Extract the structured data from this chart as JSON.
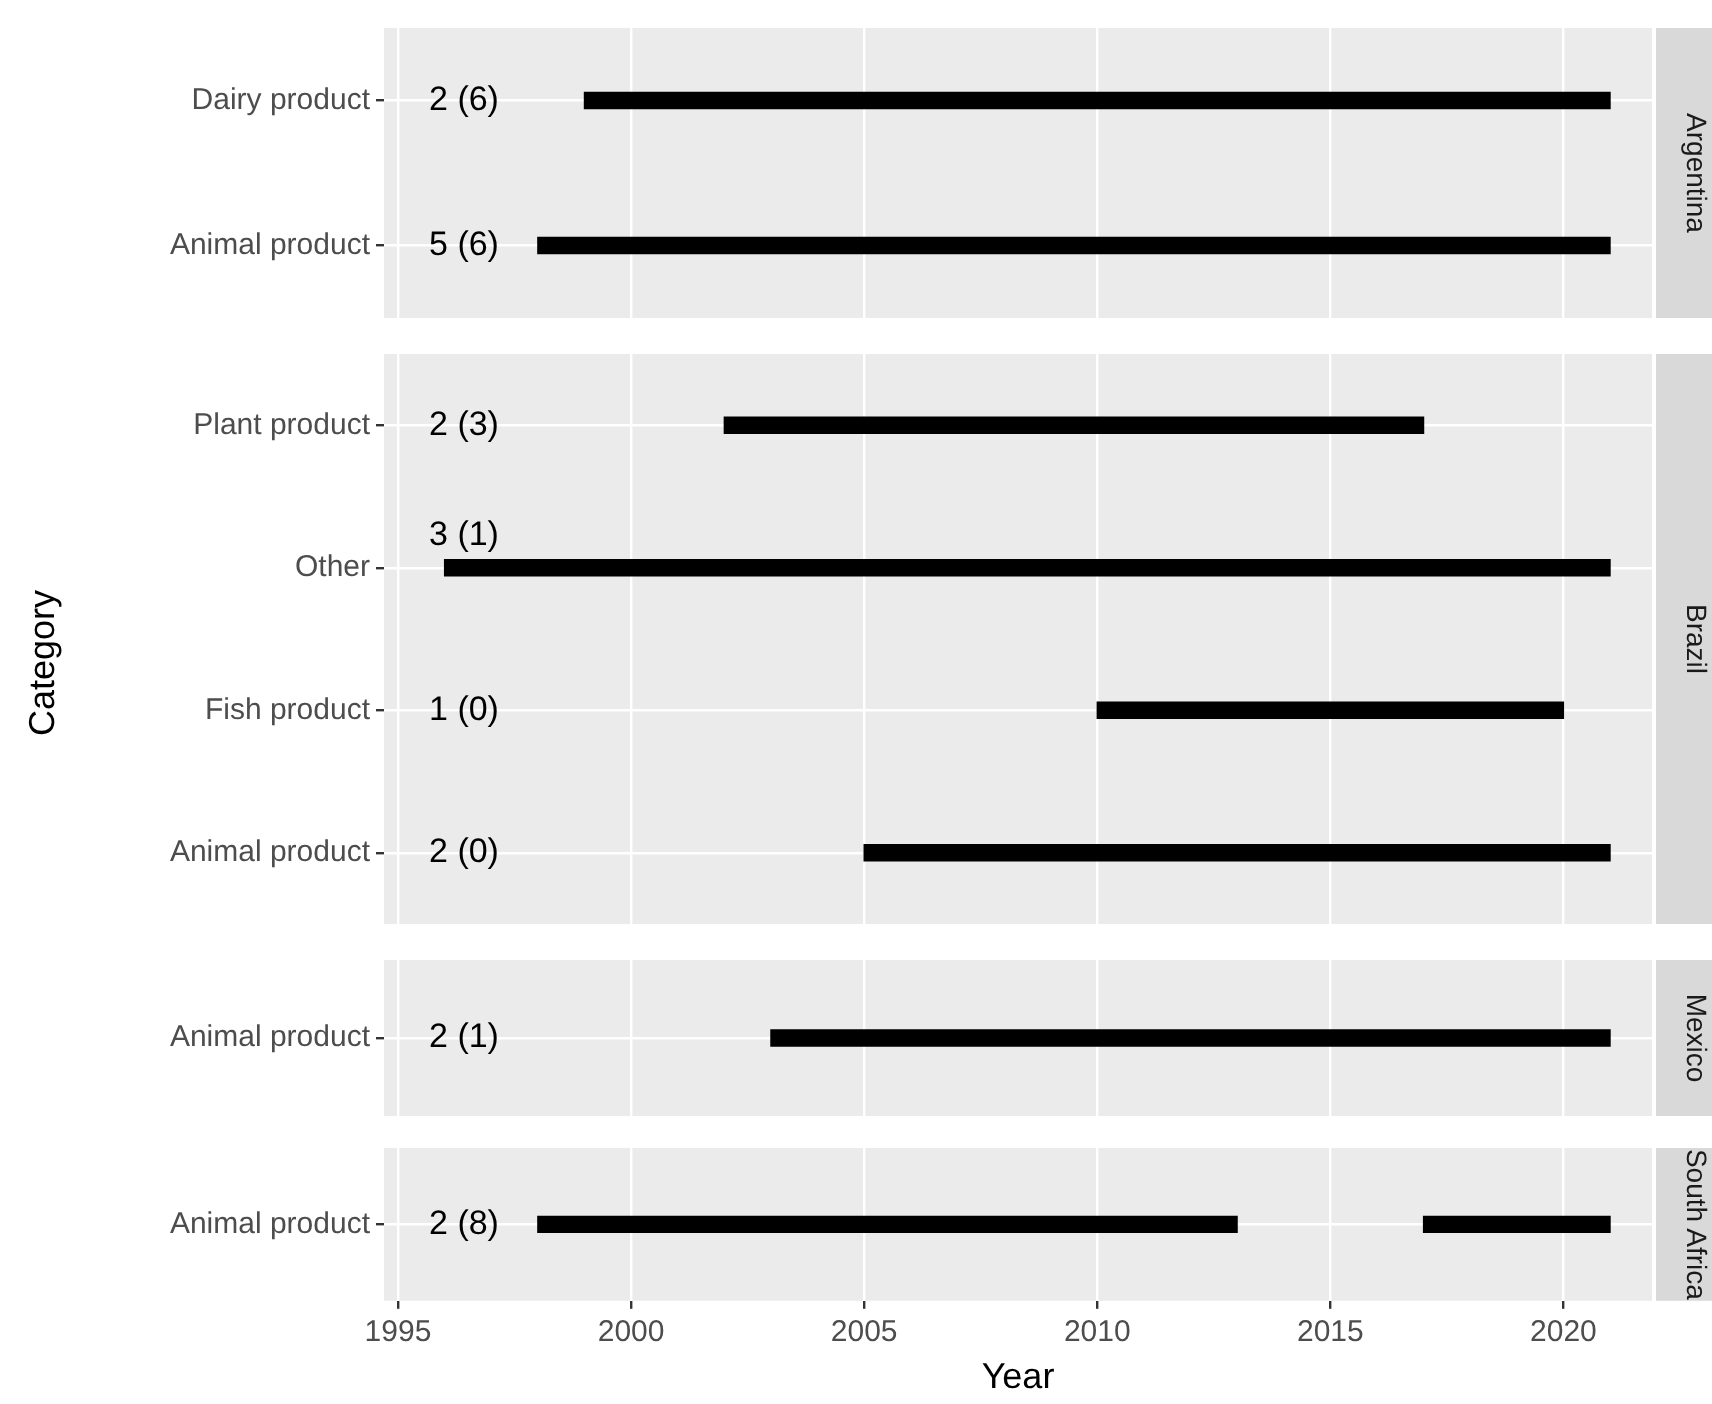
{
  "chart_data": [
    {
      "type": "bar",
      "orientation": "horizontal",
      "y2label": "Argentina",
      "categories": [
        "Dairy product",
        "Animal product"
      ],
      "base": [
        1999,
        1998
      ],
      "values": [
        22,
        23
      ],
      "color": "#000000",
      "xlim": [
        1994.7,
        2021.9
      ],
      "xticks": [
        1995,
        2000,
        2005,
        2010,
        2015,
        2020
      ],
      "grid": true,
      "tick_labels": "y",
      "annotations": [
        "2 (6)",
        "5 (6)"
      ]
    },
    {
      "type": "bar",
      "orientation": "horizontal",
      "y2label": "Brazil",
      "ylabel": "Category",
      "categories": [
        "Plant product",
        "Other",
        "Fish product",
        "Animal product"
      ],
      "base": [
        2002,
        1996,
        2010,
        2005
      ],
      "values": [
        15,
        25,
        10,
        16
      ],
      "color": "#000000",
      "xlim": [
        1994.7,
        2021.9
      ],
      "xticks": [
        1995,
        2000,
        2005,
        2010,
        2015,
        2020
      ],
      "grid": true,
      "tick_labels": "y",
      "annotations": [
        "2 (3)",
        "3 (1)",
        "1 (0)",
        "2 (0)"
      ]
    },
    {
      "type": "bar",
      "orientation": "horizontal",
      "y2label": "Mexico",
      "categories": [
        "Animal product"
      ],
      "base": [
        2003
      ],
      "values": [
        18
      ],
      "color": "#000000",
      "xlim": [
        1994.7,
        2021.9
      ],
      "xticks": [
        1995,
        2000,
        2005,
        2010,
        2015,
        2020
      ],
      "grid": true,
      "tick_labels": "y",
      "annotations": [
        "2 (1)"
      ]
    },
    {
      "type": "bar",
      "orientation": "horizontal",
      "y2label": "South Africa",
      "xlabel": "Year",
      "categories": [
        "Animal product"
      ],
      "series": [
        {
          "color": "#000000",
          "base": [
            1998
          ],
          "values": [
            15
          ]
        },
        {
          "color": "#000000",
          "base": [
            2017
          ],
          "values": [
            4
          ]
        }
      ],
      "xlim": [
        1994.7,
        2021.9
      ],
      "xticks": [
        1995,
        2000,
        2005,
        2010,
        2015,
        2020
      ],
      "grid": true,
      "annotations": [
        "2 (8)"
      ]
    }
  ]
}
